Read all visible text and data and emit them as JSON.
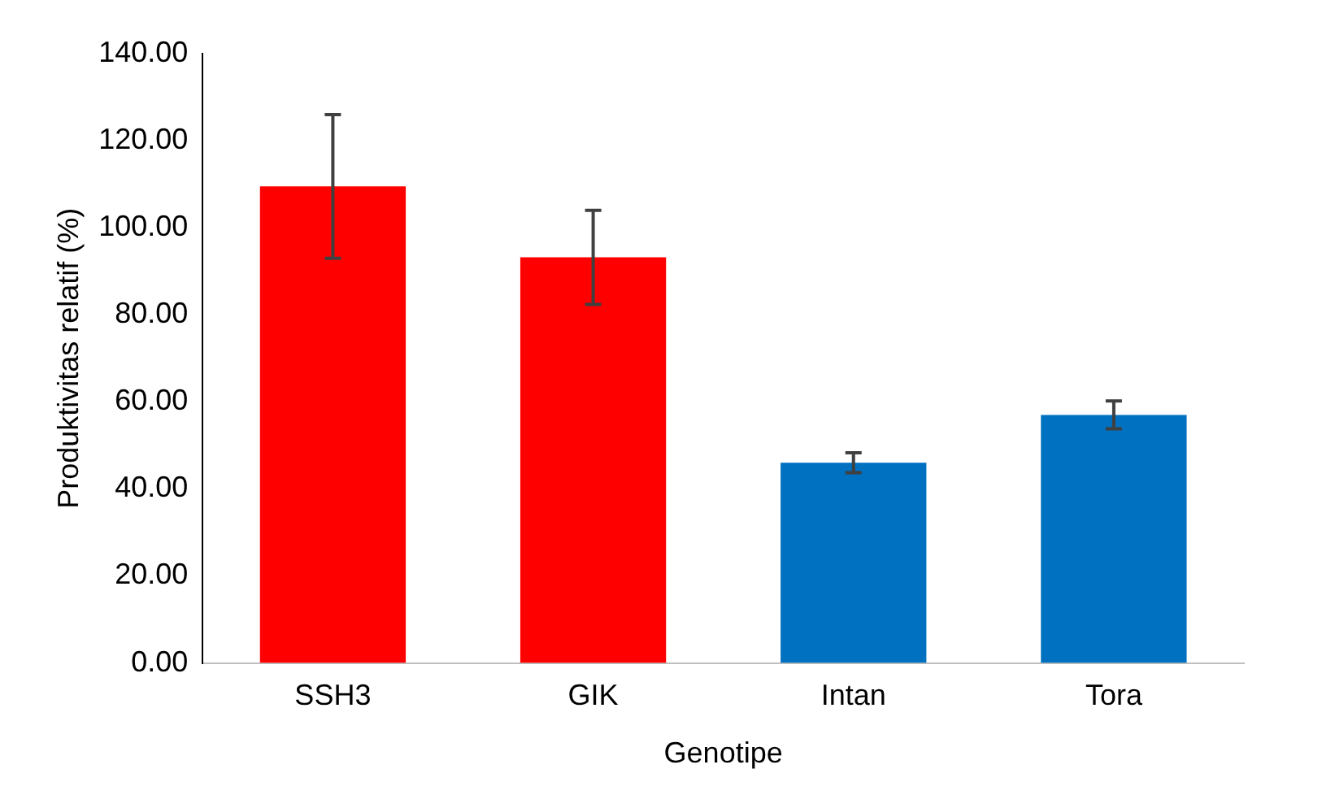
{
  "chart_data": {
    "type": "bar",
    "xlabel": "Genotipe",
    "ylabel": "Produktivitas relatif (%)",
    "categories": [
      "SSH3",
      "GIK",
      "Intan",
      "Tora"
    ],
    "values": [
      109.5,
      93.2,
      46.0,
      57.0
    ],
    "colors": [
      "#ff0000",
      "#ff0000",
      "#0070c0",
      "#0070c0"
    ],
    "errors": [
      16.5,
      10.8,
      2.3,
      3.2
    ],
    "ylim": [
      0,
      140
    ],
    "yticks": [
      {
        "value": 0,
        "label": "0.00"
      },
      {
        "value": 20,
        "label": "20.00"
      },
      {
        "value": 40,
        "label": "40.00"
      },
      {
        "value": 60,
        "label": "60.00"
      },
      {
        "value": 80,
        "label": "80.00"
      },
      {
        "value": 100,
        "label": "100.00"
      },
      {
        "value": 120,
        "label": "120.00"
      },
      {
        "value": 140,
        "label": "140.00"
      }
    ],
    "grid": false,
    "legend": false
  }
}
